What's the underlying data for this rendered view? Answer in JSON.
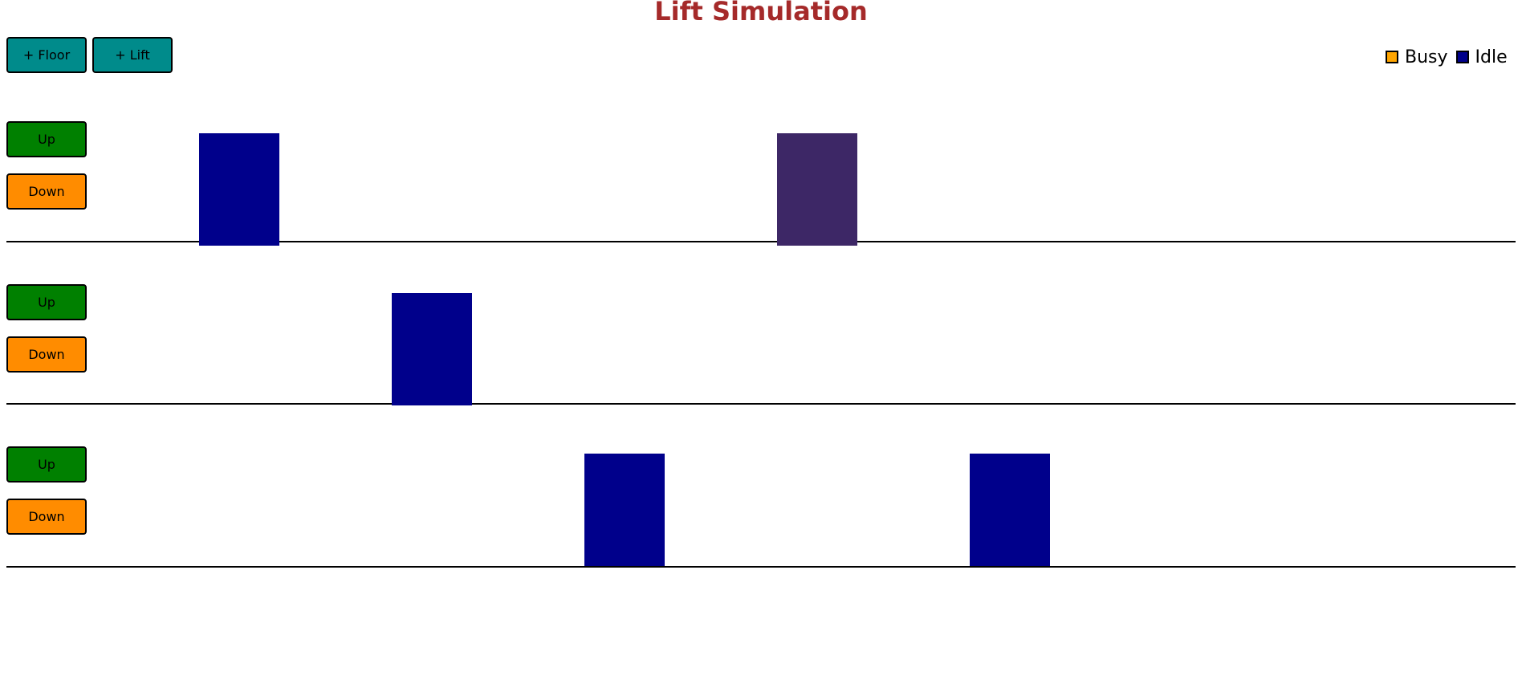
{
  "app": {
    "title": "Lift Simulation"
  },
  "toolbar": {
    "add_floor_label": "+ Floor",
    "add_lift_label": "+ Lift"
  },
  "legend": {
    "busy_label": "Busy",
    "idle_label": "Idle",
    "busy_color": "#ffa500",
    "idle_color": "#00008b"
  },
  "floors": [
    {
      "up_label": "Up",
      "down_label": "Down"
    },
    {
      "up_label": "Up",
      "down_label": "Down"
    },
    {
      "up_label": "Up",
      "down_label": "Down"
    }
  ],
  "lifts": [
    {
      "id": 1,
      "floor": 1,
      "status": "idle",
      "color": "#00008b"
    },
    {
      "id": 2,
      "floor": 2,
      "status": "idle",
      "color": "#00008b"
    },
    {
      "id": 3,
      "floor": 3,
      "status": "idle",
      "color": "#00008b"
    },
    {
      "id": 4,
      "floor": 1,
      "status": "moving",
      "color": "#3d2766"
    },
    {
      "id": 5,
      "floor": 3,
      "status": "idle",
      "color": "#00008b"
    }
  ],
  "colors": {
    "title": "#a52a2a",
    "teal_button": "#008b8b",
    "up_button": "#008000",
    "down_button": "#ff8c00"
  }
}
